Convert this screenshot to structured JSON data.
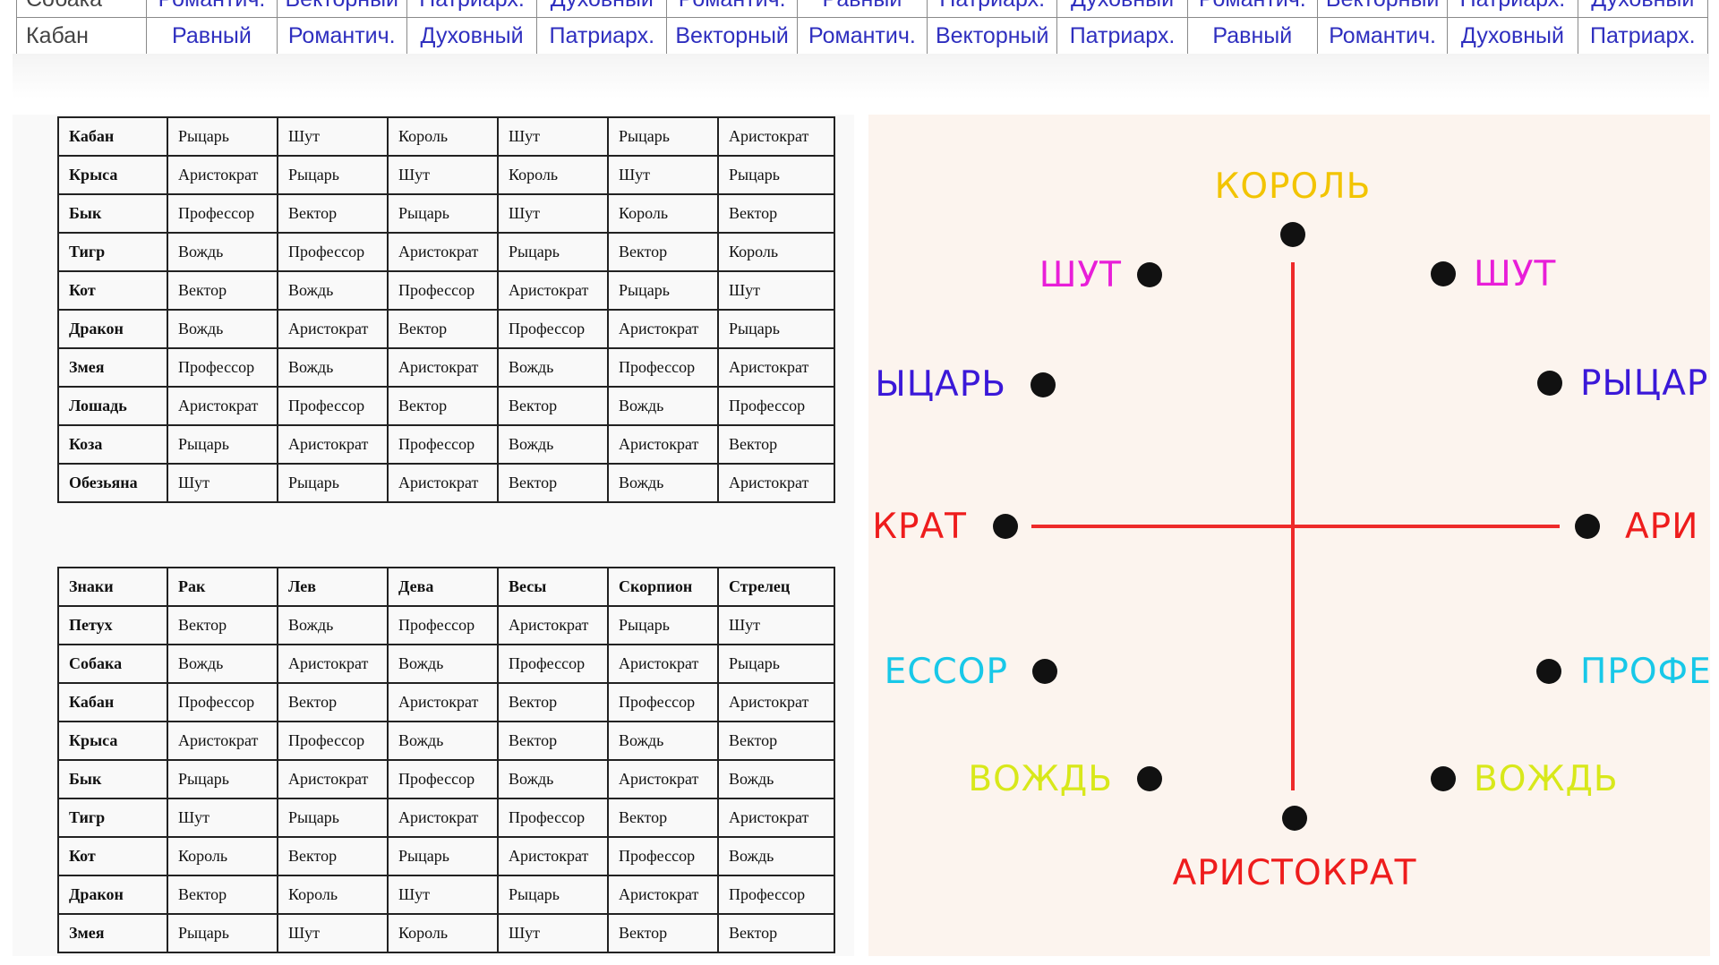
{
  "top_table": {
    "row": [
      "Кабан",
      "Равный",
      "Романтич.",
      "Духовный",
      "Патриарх.",
      "Векторный",
      "Романтич.",
      "Векторный",
      "Патриарх.",
      "Равный",
      "Романтич.",
      "Духовный",
      "Патриарх."
    ],
    "partial_row": [
      "Собака",
      "Романтич.",
      "Векторный",
      "Патриарх.",
      "Духовный",
      "Романтич.",
      "Равный",
      "Патриарх.",
      "Духовный",
      "Романтич.",
      "Векторный",
      "Патриарх.",
      "Духовный"
    ]
  },
  "table1": {
    "rows": [
      [
        "Кабан",
        "Рыцарь",
        "Шут",
        "Король",
        "Шут",
        "Рыцарь",
        "Аристократ"
      ],
      [
        "Крыса",
        "Аристократ",
        "Рыцарь",
        "Шут",
        "Король",
        "Шут",
        "Рыцарь"
      ],
      [
        "Бык",
        "Профессор",
        "Вектор",
        "Рыцарь",
        "Шут",
        "Король",
        "Вектор"
      ],
      [
        "Тигр",
        "Вождь",
        "Профессор",
        "Аристократ",
        "Рыцарь",
        "Вектор",
        "Король"
      ],
      [
        "Кот",
        "Вектор",
        "Вождь",
        "Профессор",
        "Аристократ",
        "Рыцарь",
        "Шут"
      ],
      [
        "Дракон",
        "Вождь",
        "Аристократ",
        "Вектор",
        "Профессор",
        "Аристократ",
        "Рыцарь"
      ],
      [
        "Змея",
        "Профессор",
        "Вождь",
        "Аристократ",
        "Вождь",
        "Профессор",
        "Аристократ"
      ],
      [
        "Лошадь",
        "Аристократ",
        "Профессор",
        "Вектор",
        "Вектор",
        "Вождь",
        "Профессор"
      ],
      [
        "Коза",
        "Рыцарь",
        "Аристократ",
        "Профессор",
        "Вождь",
        "Аристократ",
        "Вектор"
      ],
      [
        "Обезьяна",
        "Шут",
        "Рыцарь",
        "Аристократ",
        "Вектор",
        "Вождь",
        "Аристократ"
      ]
    ]
  },
  "table2": {
    "header": [
      "Знаки",
      "Рак",
      "Лев",
      "Дева",
      "Весы",
      "Скорпион",
      "Стрелец"
    ],
    "rows": [
      [
        "Петух",
        "Вектор",
        "Вождь",
        "Профессор",
        "Аристократ",
        "Рыцарь",
        "Шут"
      ],
      [
        "Собака",
        "Вождь",
        "Аристократ",
        "Вождь",
        "Профессор",
        "Аристократ",
        "Рыцарь"
      ],
      [
        "Кабан",
        "Профессор",
        "Вектор",
        "Аристократ",
        "Вектор",
        "Профессор",
        "Аристократ"
      ],
      [
        "Крыса",
        "Аристократ",
        "Профессор",
        "Вождь",
        "Вектор",
        "Вождь",
        "Вектор"
      ],
      [
        "Бык",
        "Рыцарь",
        "Аристократ",
        "Профессор",
        "Вождь",
        "Аристократ",
        "Вождь"
      ],
      [
        "Тигр",
        "Шут",
        "Рыцарь",
        "Аристократ",
        "Профессор",
        "Вектор",
        "Аристократ"
      ],
      [
        "Кот",
        "Король",
        "Вектор",
        "Рыцарь",
        "Аристократ",
        "Профессор",
        "Вождь"
      ],
      [
        "Дракон",
        "Вектор",
        "Король",
        "Шут",
        "Рыцарь",
        "Аристократ",
        "Профессор"
      ],
      [
        "Змея",
        "Рыцарь",
        "Шут",
        "Король",
        "Шут",
        "Вектор",
        "Вектор"
      ]
    ]
  },
  "diagram": {
    "king": "КОРОЛЬ",
    "jester_left": "ШУТ",
    "jester_right": "ШУТ",
    "knight_left": "ЫЦАРЬ",
    "knight_right": "РЫЦАР",
    "aristocrat_left": "КРАТ",
    "aristocrat_right": "АРИ",
    "professor_left": "ЕССОР",
    "professor_right": "ПРОФЕ",
    "leader_left": "ВОЖДЬ",
    "leader_right": "ВОЖДЬ",
    "aristocrat_bottom": "АРИСТОКРАТ",
    "colors": {
      "king": "#f2c400",
      "jester": "#e81ed8",
      "knight": "#3a18d8",
      "aristocrat": "#ee1c1c",
      "professor": "#18c8e8",
      "leader": "#d8e81a",
      "axis": "#ee2a2a",
      "dot": "#111111"
    }
  }
}
